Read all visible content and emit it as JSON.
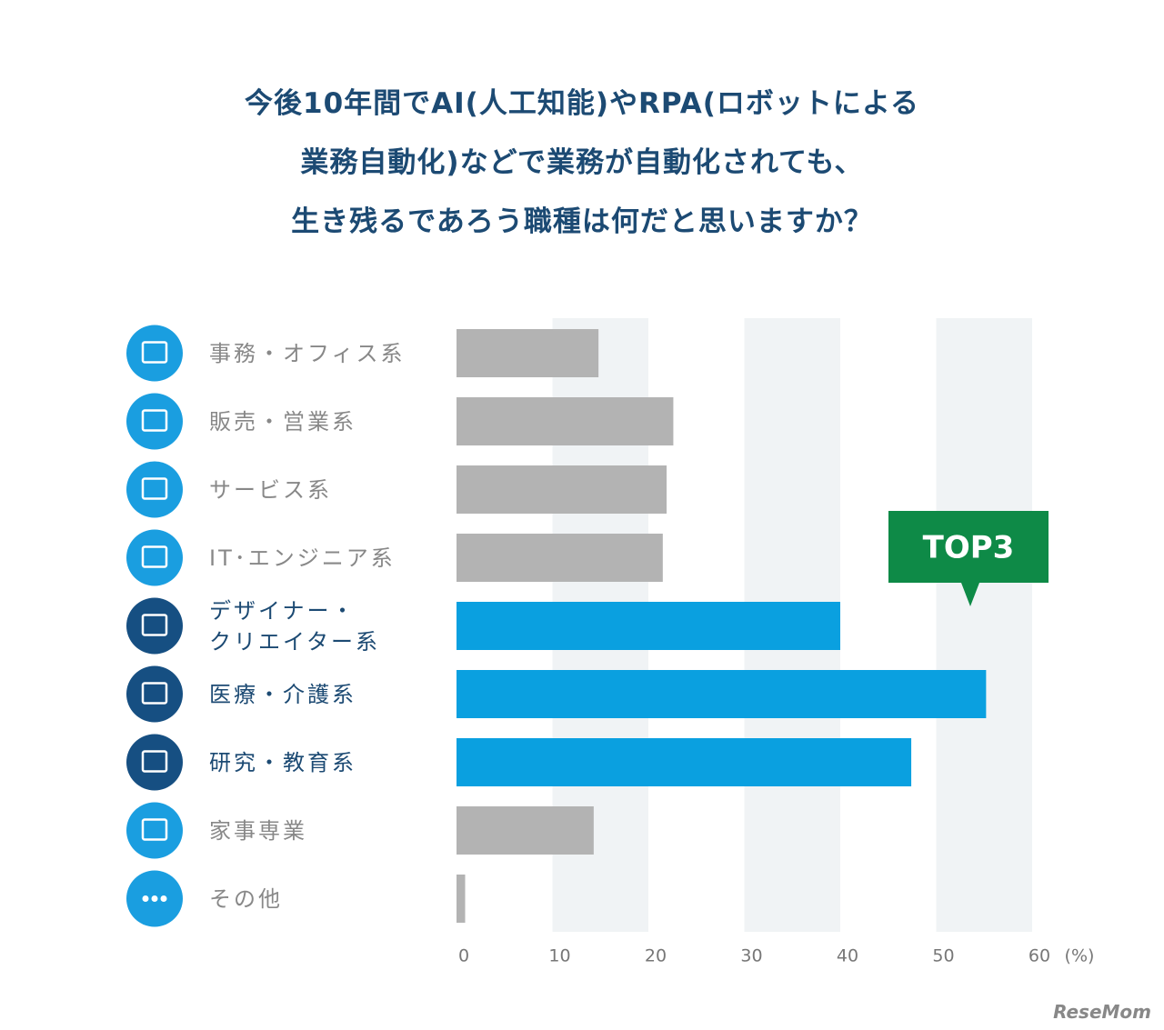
{
  "chart_data": {
    "type": "bar",
    "title": "今後10年間でAI(人工知能)やRPA(ロボットによる\n業務自動化)などで業務が自動化されても、\n生き残るであろう職種は何だと思いますか？",
    "categories": [
      "事務・オフィス系",
      "販売・営業系",
      "サービス系",
      "IT･エンジニア系",
      "デザイナー・\nクリエイター系",
      "医療・介護系",
      "研究・教育系",
      "家事専業",
      "その他"
    ],
    "values": [
      14.8,
      22.6,
      21.9,
      21.5,
      40.0,
      55.2,
      47.4,
      14.3,
      0.9
    ],
    "colors": [
      "#b3b3b3",
      "#b3b3b3",
      "#b3b3b3",
      "#b3b3b3",
      "#0aa0e0",
      "#0aa0e0",
      "#0aa0e0",
      "#b3b3b3",
      "#b3b3b3"
    ],
    "highlighted": [
      4,
      5,
      6
    ],
    "xlim": [
      0,
      60
    ],
    "xticks": [
      0,
      10,
      20,
      30,
      40,
      50,
      60
    ],
    "x_label": "(%)",
    "band_color": "#f0f3f5",
    "annotation": "TOP3",
    "watermark": "ReseMom"
  }
}
